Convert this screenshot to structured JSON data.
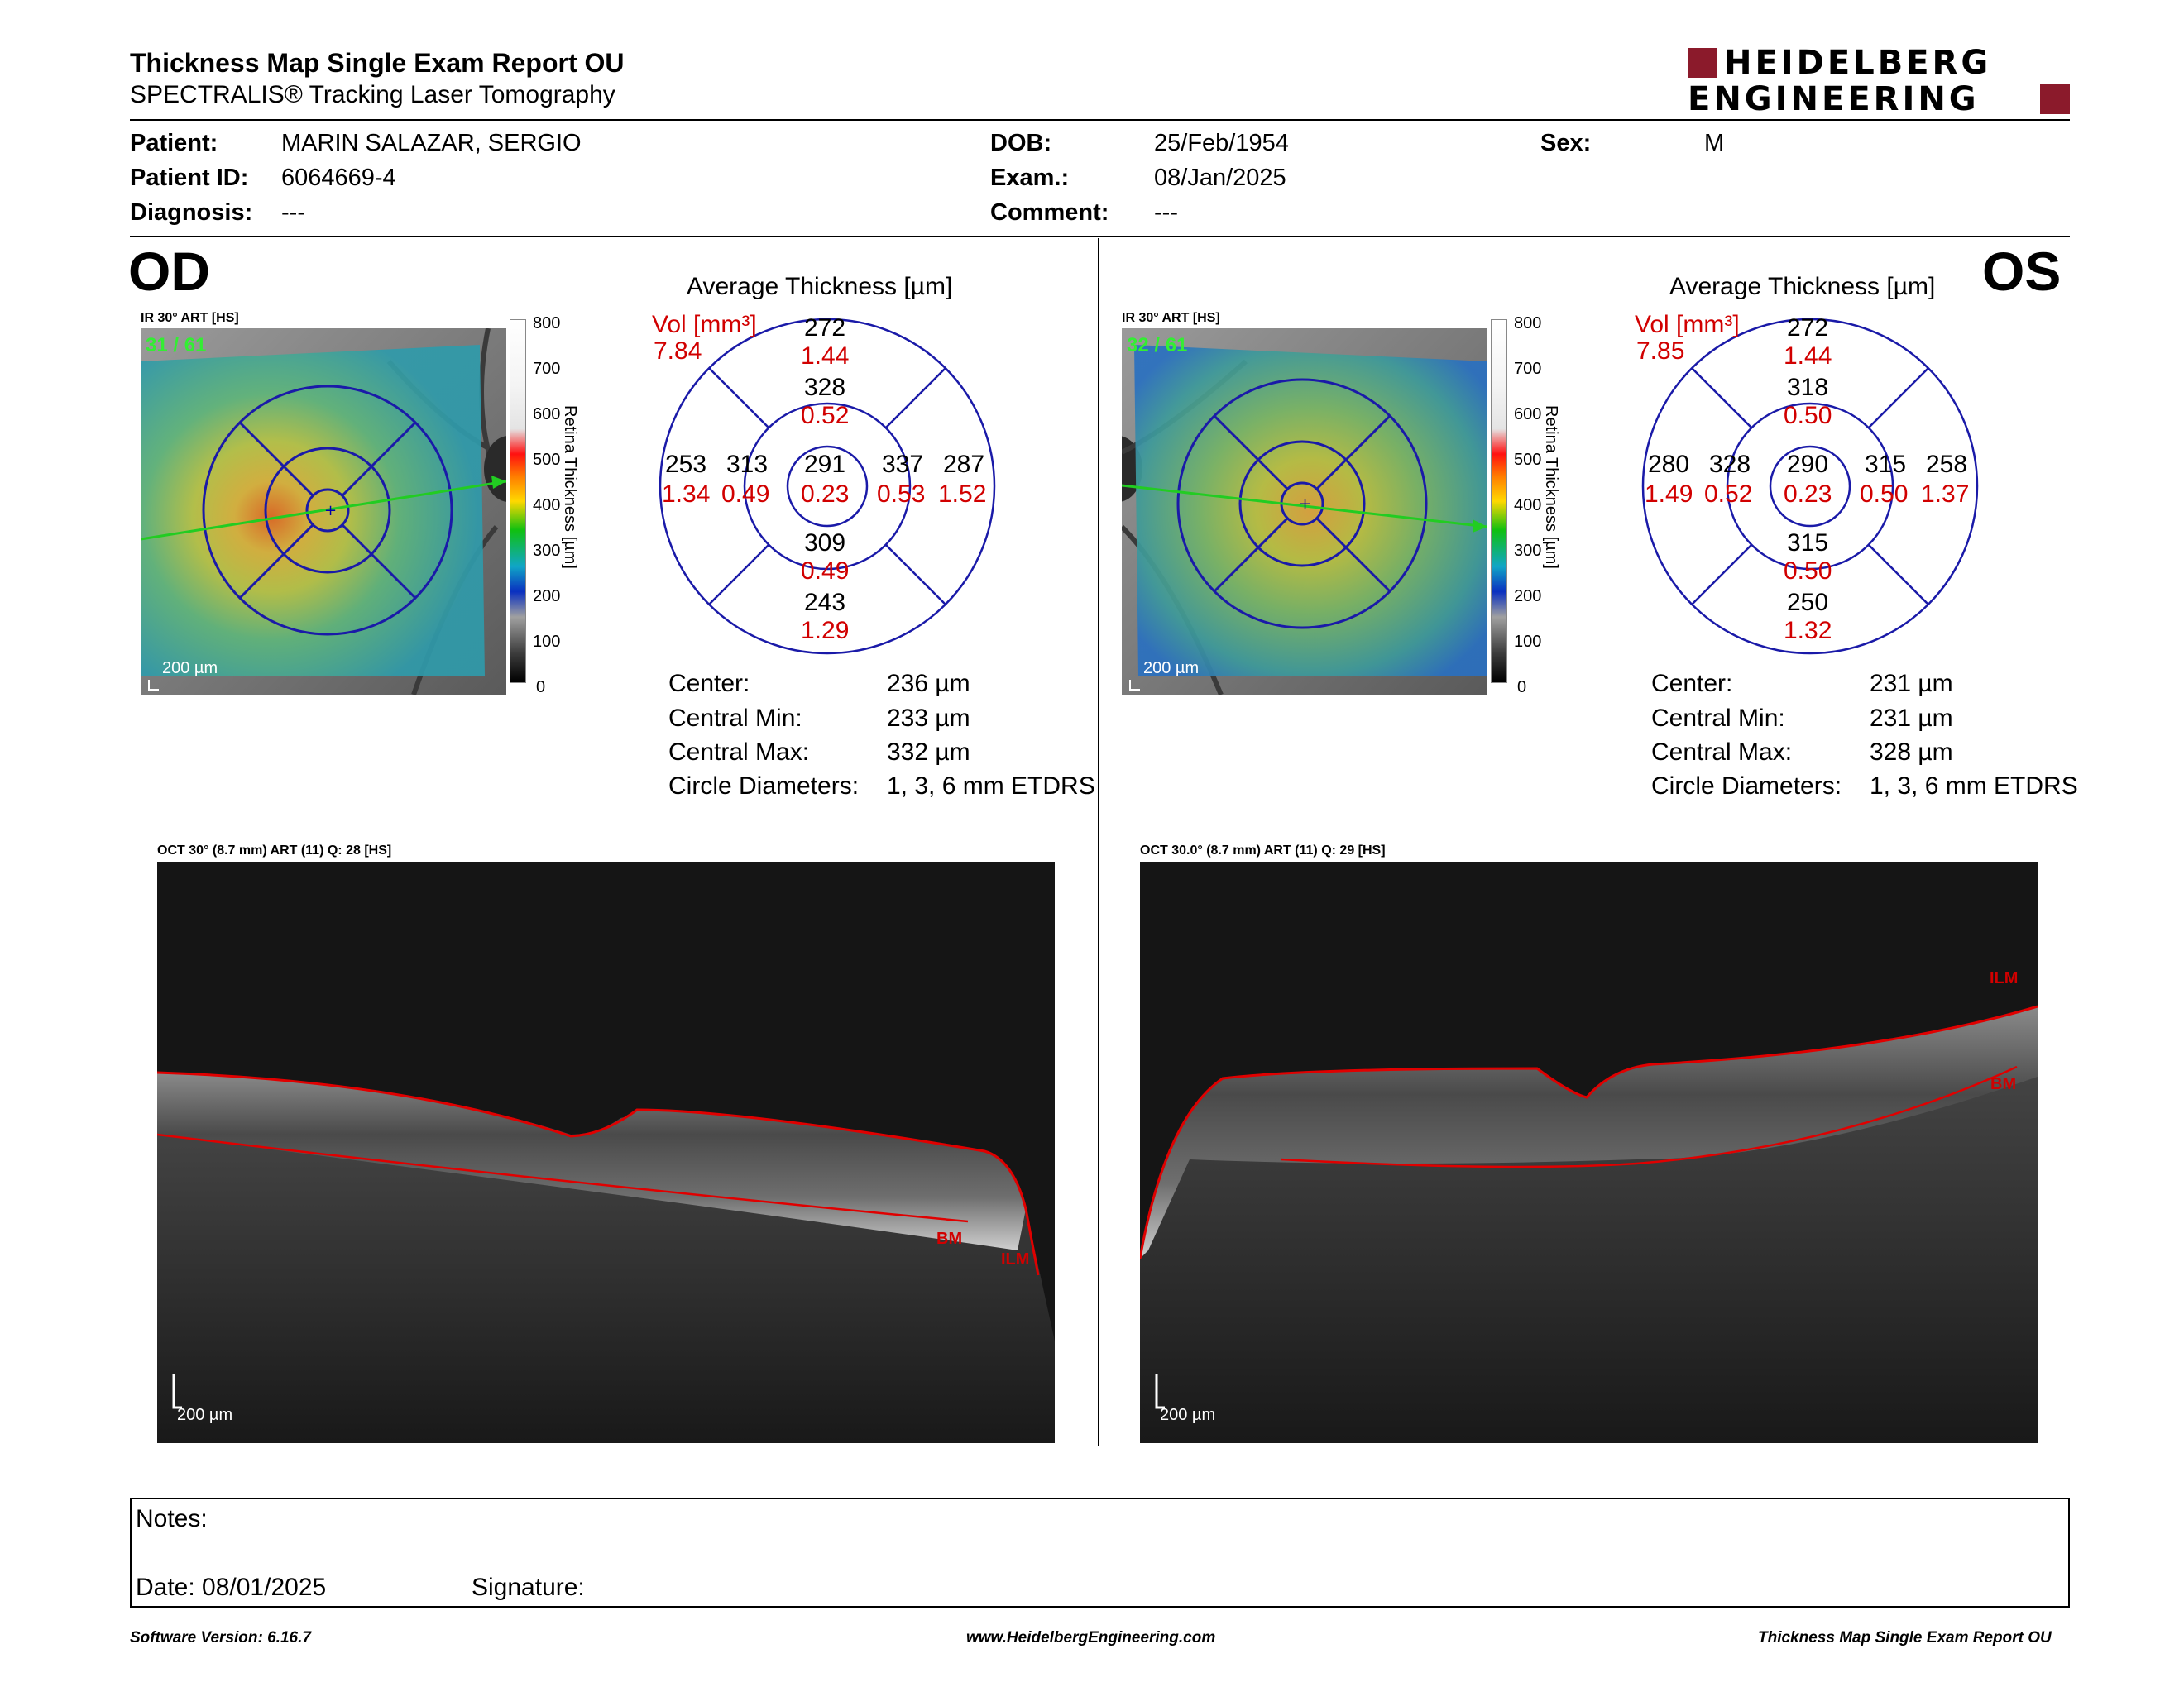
{
  "header": {
    "title": "Thickness Map Single Exam Report OU",
    "subtitle": "SPECTRALIS® Tracking Laser Tomography",
    "logo_line1": "HEIDELBERG",
    "logo_line2": "ENGINEERING",
    "brand_color": "#8b1a2b"
  },
  "patient": {
    "patient_label": "Patient:",
    "patient_value": "MARIN SALAZAR, SERGIO",
    "id_label": "Patient ID:",
    "id_value": "6064669-4",
    "diagnosis_label": "Diagnosis:",
    "diagnosis_value": "---",
    "dob_label": "DOB:",
    "dob_value": "25/Feb/1954",
    "exam_label": "Exam.:",
    "exam_value": "08/Jan/2025",
    "comment_label": "Comment:",
    "comment_value": "---",
    "sex_label": "Sex:",
    "sex_value": "M"
  },
  "scale": {
    "ticks": [
      "800",
      "700",
      "600",
      "500",
      "400",
      "300",
      "200",
      "100",
      "0"
    ],
    "axis_label": "Retina  Thickness [µm]"
  },
  "od": {
    "eye": "OD",
    "ir_label": "IR 30° ART [HS]",
    "frame_label": "31 / 61",
    "map_scale": "200 µm",
    "avg_title": "Average Thickness [µm]",
    "vol_label": "Vol [mm³]",
    "total_vol": "7.84",
    "center": {
      "t": "291",
      "v": "0.23"
    },
    "inner_sup": {
      "t": "328",
      "v": "0.52"
    },
    "inner_inf": {
      "t": "309",
      "v": "0.49"
    },
    "inner_left": {
      "t": "313",
      "v": "0.49"
    },
    "inner_right": {
      "t": "337",
      "v": "0.53"
    },
    "outer_sup": {
      "t": "272",
      "v": "1.44"
    },
    "outer_inf": {
      "t": "243",
      "v": "1.29"
    },
    "outer_left": {
      "t": "253",
      "v": "1.34"
    },
    "outer_right": {
      "t": "287",
      "v": "1.52"
    },
    "stats": [
      {
        "label": "Center:",
        "value": "236 µm"
      },
      {
        "label": "Central Min:",
        "value": "233 µm"
      },
      {
        "label": "Central Max:",
        "value": "332 µm"
      },
      {
        "label": "Circle Diameters:",
        "value": "1, 3, 6 mm ETDRS"
      }
    ],
    "oct_label": "OCT 30° (8.7 mm) ART (11) Q: 28 [HS]",
    "oct_scale": "200 µm",
    "ilm_label": "ILM",
    "bm_label": "BM"
  },
  "os": {
    "eye": "OS",
    "ir_label": "IR 30° ART [HS]",
    "frame_label": "32 / 61",
    "map_scale": "200 µm",
    "avg_title": "Average Thickness [µm]",
    "vol_label": "Vol [mm³]",
    "total_vol": "7.85",
    "center": {
      "t": "290",
      "v": "0.23"
    },
    "inner_sup": {
      "t": "318",
      "v": "0.50"
    },
    "inner_inf": {
      "t": "315",
      "v": "0.50"
    },
    "inner_left": {
      "t": "328",
      "v": "0.52"
    },
    "inner_right": {
      "t": "315",
      "v": "0.50"
    },
    "outer_sup": {
      "t": "272",
      "v": "1.44"
    },
    "outer_inf": {
      "t": "250",
      "v": "1.32"
    },
    "outer_left": {
      "t": "280",
      "v": "1.49"
    },
    "outer_right": {
      "t": "258",
      "v": "1.37"
    },
    "stats": [
      {
        "label": "Center:",
        "value": "231 µm"
      },
      {
        "label": "Central Min:",
        "value": "231 µm"
      },
      {
        "label": "Central Max:",
        "value": "328 µm"
      },
      {
        "label": "Circle Diameters:",
        "value": "1, 3, 6 mm ETDRS"
      }
    ],
    "oct_label": "OCT 30.0° (8.7 mm) ART (11) Q: 29 [HS]",
    "oct_scale": "200 µm",
    "ilm_label": "ILM",
    "bm_label": "BM"
  },
  "notes": {
    "notes_label": "Notes:",
    "date_label": "Date: 08/01/2025",
    "signature_label": "Signature:"
  },
  "footer": {
    "version": "Software Version: 6.16.7",
    "url": "www.HeidelbergEngineering.com",
    "report": "Thickness Map Single Exam Report OU"
  }
}
